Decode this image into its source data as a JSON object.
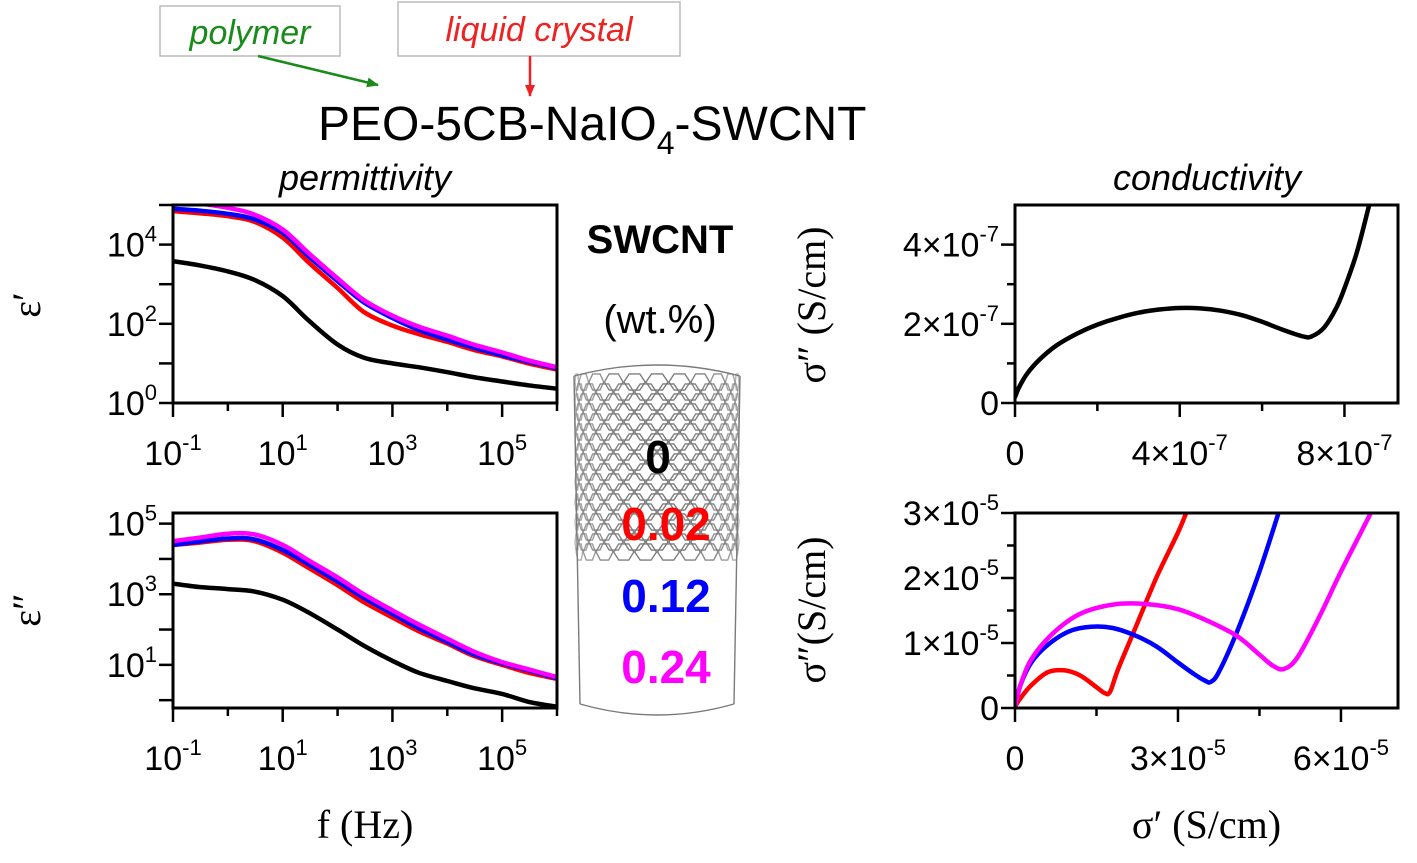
{
  "header": {
    "formula_main": "PEO-5CB-NaIO",
    "formula_sub": "4",
    "formula_tail": "-SWCNT",
    "tag_polymer": "polymer",
    "tag_liquid_crystal": "liquid crystal",
    "permittivity_title": "permittivity",
    "conductivity_title": "conductivity"
  },
  "colors": {
    "polymer_tag": "#1a8a1a",
    "liquid_crystal_tag": "#ee2222",
    "series_0": "#000000",
    "series_002": "#ff0000",
    "series_012": "#0000ff",
    "series_024": "#ff00ff"
  },
  "legend": {
    "title": "SWCNT",
    "unit": "(wt.%)",
    "entries": [
      "0",
      "0.02",
      "0.12",
      "0.24"
    ]
  },
  "chart_data": [
    {
      "id": "eps-real",
      "type": "line",
      "ylabel": "ε′",
      "xlabel": "",
      "x_scale": "log",
      "y_scale": "log",
      "xlim": [
        0.1,
        1000000
      ],
      "ylim": [
        1,
        100000
      ],
      "x_ticks": [
        {
          "b": "10",
          "e": "-1",
          "v": 0.1
        },
        {
          "b": "10",
          "e": "1",
          "v": 10
        },
        {
          "b": "10",
          "e": "3",
          "v": 1000
        },
        {
          "b": "10",
          "e": "5",
          "v": 100000
        }
      ],
      "y_ticks": [
        {
          "b": "10",
          "e": "0",
          "v": 1
        },
        {
          "b": "10",
          "e": "2",
          "v": 100
        },
        {
          "b": "10",
          "e": "4",
          "v": 10000
        }
      ],
      "x": [
        0.1,
        0.3,
        1,
        3,
        10,
        30,
        100,
        300,
        1000,
        3000,
        10000,
        30000,
        100000,
        300000,
        1000000
      ],
      "series": [
        {
          "name": "0",
          "values": [
            3800,
            3000,
            2100,
            1300,
            500,
            120,
            30,
            14,
            10,
            8,
            6,
            4.5,
            3.5,
            2.8,
            2.3
          ]
        },
        {
          "name": "0.02",
          "values": [
            70000,
            62000,
            52000,
            38000,
            15000,
            3500,
            800,
            200,
            90,
            55,
            35,
            22,
            15,
            10,
            7
          ]
        },
        {
          "name": "0.12",
          "values": [
            80000,
            72000,
            60000,
            44000,
            20000,
            5000,
            1200,
            350,
            140,
            70,
            40,
            25,
            16,
            11,
            7.5
          ]
        },
        {
          "name": "0.24",
          "values": [
            130000,
            110000,
            85000,
            58000,
            24000,
            6000,
            1400,
            400,
            160,
            85,
            50,
            30,
            19,
            12,
            8
          ]
        }
      ]
    },
    {
      "id": "eps-imag",
      "type": "line",
      "ylabel": "ε″",
      "xlabel": "f (Hz)",
      "x_scale": "log",
      "y_scale": "log",
      "xlim": [
        0.1,
        1000000
      ],
      "ylim": [
        0.6,
        200000
      ],
      "x_ticks": [
        {
          "b": "10",
          "e": "-1",
          "v": 0.1
        },
        {
          "b": "10",
          "e": "1",
          "v": 10
        },
        {
          "b": "10",
          "e": "3",
          "v": 1000
        },
        {
          "b": "10",
          "e": "5",
          "v": 100000
        }
      ],
      "y_ticks": [
        {
          "b": "10",
          "e": "1",
          "v": 10
        },
        {
          "b": "10",
          "e": "3",
          "v": 1000
        },
        {
          "b": "10",
          "e": "5",
          "v": 100000
        }
      ],
      "x": [
        0.1,
        0.3,
        1,
        3,
        10,
        30,
        100,
        300,
        1000,
        3000,
        10000,
        30000,
        100000,
        300000,
        1000000
      ],
      "series": [
        {
          "name": "0",
          "values": [
            2000,
            1600,
            1400,
            1200,
            700,
            300,
            100,
            35,
            13,
            6,
            3.5,
            2.2,
            1.5,
            0.9,
            0.65
          ]
        },
        {
          "name": "0.02",
          "values": [
            25000,
            29000,
            35000,
            32000,
            15000,
            5500,
            1800,
            600,
            220,
            90,
            40,
            18,
            10,
            6,
            4
          ]
        },
        {
          "name": "0.12",
          "values": [
            25000,
            31000,
            38000,
            36000,
            18000,
            7000,
            2300,
            800,
            280,
            110,
            45,
            20,
            11,
            7,
            4.2
          ]
        },
        {
          "name": "0.24",
          "values": [
            32000,
            40000,
            52000,
            50000,
            25000,
            9000,
            3000,
            1000,
            350,
            140,
            55,
            24,
            12,
            7.5,
            4.5
          ]
        }
      ]
    },
    {
      "id": "cond-nyquist-0",
      "type": "line",
      "ylabel": "σ″ (S/cm)",
      "xlabel": "",
      "xlim": [
        0,
        9.3e-07
      ],
      "ylim": [
        0,
        5e-07
      ],
      "x_ticks": [
        {
          "b": "0",
          "e": "",
          "v": 0
        },
        {
          "b": "4×10",
          "e": "-7",
          "v": 4e-07
        },
        {
          "b": "8×10",
          "e": "-7",
          "v": 8e-07
        }
      ],
      "y_ticks": [
        {
          "b": "0",
          "e": "",
          "v": 0
        },
        {
          "b": "2×10",
          "e": "-7",
          "v": 2e-07
        },
        {
          "b": "4×10",
          "e": "-7",
          "v": 4e-07
        }
      ],
      "series": [
        {
          "name": "0",
          "x": [
            0,
            1e-08,
            3e-08,
            6e-08,
            1e-07,
            1.5e-07,
            2e-07,
            2.5e-07,
            3e-07,
            3.5e-07,
            4e-07,
            4.5e-07,
            5e-07,
            5.5e-07,
            6e-07,
            6.5e-07,
            7e-07,
            7.2e-07,
            7.5e-07,
            7.8e-07,
            8e-07,
            8.3e-07,
            8.6e-07
          ],
          "values": [
            1.5e-08,
            4e-08,
            7.5e-08,
            1.1e-07,
            1.45e-07,
            1.75e-07,
            1.98e-07,
            2.15e-07,
            2.28e-07,
            2.36e-07,
            2.4e-07,
            2.39e-07,
            2.33e-07,
            2.22e-07,
            2.05e-07,
            1.85e-07,
            1.68e-07,
            1.68e-07,
            1.9e-07,
            2.4e-07,
            2.9e-07,
            3.8e-07,
            5e-07
          ]
        }
      ]
    },
    {
      "id": "cond-nyquist-swcnt",
      "type": "line",
      "ylabel": "σ″(S/cm)",
      "xlabel": "σ′ (S/cm)",
      "xlim": [
        0,
        7.05e-05
      ],
      "ylim": [
        0,
        3e-05
      ],
      "x_ticks": [
        {
          "b": "0",
          "e": "",
          "v": 0
        },
        {
          "b": "3×10",
          "e": "-5",
          "v": 3e-05
        },
        {
          "b": "6×10",
          "e": "-5",
          "v": 6e-05
        }
      ],
      "y_ticks": [
        {
          "b": "0",
          "e": "",
          "v": 0
        },
        {
          "b": "1×10",
          "e": "-5",
          "v": 1e-05
        },
        {
          "b": "2×10",
          "e": "-5",
          "v": 2e-05
        },
        {
          "b": "3×10",
          "e": "-5",
          "v": 3e-05
        }
      ],
      "series": [
        {
          "name": "0.02",
          "x": [
            0,
            1e-06,
            3e-06,
            6e-06,
            9e-06,
            1.2e-05,
            1.5e-05,
            1.65e-05,
            1.75e-05,
            1.9e-05,
            2.2e-05,
            2.6e-05,
            3e-05,
            3.15e-05
          ],
          "values": [
            2e-07,
            1.5e-06,
            3.5e-06,
            5.5e-06,
            5.8e-06,
            5e-06,
            3.2e-06,
            2.3e-06,
            2.5e-06,
            6e-06,
            1.2e-05,
            2e-05,
            2.7e-05,
            3e-05
          ]
        },
        {
          "name": "0.12",
          "x": [
            0,
            1e-06,
            3e-06,
            6e-06,
            1e-05,
            1.4e-05,
            1.8e-05,
            2.2e-05,
            2.6e-05,
            3e-05,
            3.3e-05,
            3.5e-05,
            3.6e-05,
            3.75e-05,
            4.1e-05,
            4.5e-05,
            4.85e-05
          ],
          "values": [
            2e-07,
            3.5e-06,
            7e-06,
            9.7e-06,
            1.18e-05,
            1.25e-05,
            1.23e-05,
            1.12e-05,
            9.5e-06,
            7e-06,
            5.2e-06,
            4.2e-06,
            4e-06,
            5.5e-06,
            1.2e-05,
            2.1e-05,
            3e-05
          ]
        },
        {
          "name": "0.24",
          "x": [
            0,
            1e-06,
            3e-06,
            7e-06,
            1.2e-05,
            1.8e-05,
            2.4e-05,
            3e-05,
            3.6e-05,
            4.1e-05,
            4.5e-05,
            4.75e-05,
            4.95e-05,
            5.2e-05,
            5.6e-05,
            6e-05,
            6.55e-05
          ],
          "values": [
            2e-07,
            3.5e-06,
            7.5e-06,
            1.15e-05,
            1.45e-05,
            1.59e-05,
            1.6e-05,
            1.52e-05,
            1.32e-05,
            1.1e-05,
            8.2e-06,
            6.5e-06,
            6e-06,
            7.8e-06,
            1.4e-05,
            2.1e-05,
            3e-05
          ]
        }
      ]
    }
  ]
}
